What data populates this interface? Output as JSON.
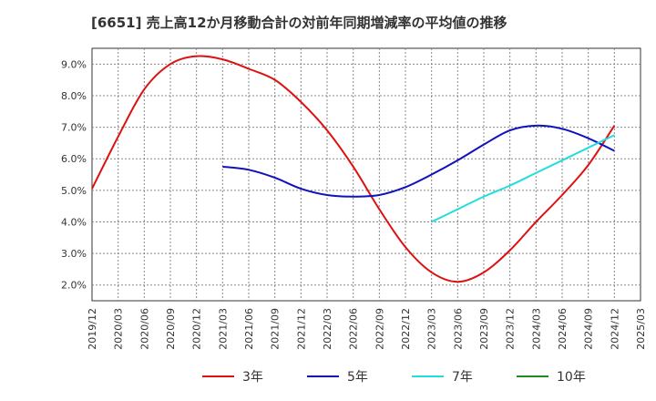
{
  "chart_data": {
    "type": "line",
    "title": "[6651]  売上高12か月移動合計の対前年同期増減率の平均値の推移",
    "xlabel": "",
    "ylabel": "",
    "x_ticks": [
      "2019/12",
      "2020/03",
      "2020/06",
      "2020/09",
      "2020/12",
      "2021/03",
      "2021/06",
      "2021/09",
      "2021/12",
      "2022/03",
      "2022/06",
      "2022/09",
      "2022/12",
      "2023/03",
      "2023/06",
      "2023/09",
      "2023/12",
      "2024/03",
      "2024/06",
      "2024/09",
      "2024/12",
      "2025/03"
    ],
    "y_ticks": [
      2.0,
      3.0,
      4.0,
      5.0,
      6.0,
      7.0,
      8.0,
      9.0
    ],
    "y_tick_labels": [
      "2.0%",
      "3.0%",
      "4.0%",
      "5.0%",
      "6.0%",
      "7.0%",
      "8.0%",
      "9.0%"
    ],
    "ylim": [
      1.5,
      9.5
    ],
    "grid": true,
    "legend_position": "bottom",
    "series": [
      {
        "name": "3年",
        "color": "#dd1111",
        "x": [
          "2019/12",
          "2020/03",
          "2020/06",
          "2020/09",
          "2020/12",
          "2021/03",
          "2021/06",
          "2021/09",
          "2021/12",
          "2022/03",
          "2022/06",
          "2022/09",
          "2022/12",
          "2023/03",
          "2023/06",
          "2023/09",
          "2023/12",
          "2024/03",
          "2024/06",
          "2024/09",
          "2024/12"
        ],
        "values": [
          5.05,
          6.7,
          8.2,
          9.0,
          9.25,
          9.15,
          8.85,
          8.5,
          7.8,
          6.9,
          5.75,
          4.4,
          3.2,
          2.4,
          2.1,
          2.4,
          3.1,
          4.0,
          4.85,
          5.8,
          7.05
        ]
      },
      {
        "name": "5年",
        "color": "#1111bb",
        "x": [
          "2021/03",
          "2021/06",
          "2021/09",
          "2021/12",
          "2022/03",
          "2022/06",
          "2022/09",
          "2022/12",
          "2023/03",
          "2023/06",
          "2023/09",
          "2023/12",
          "2024/03",
          "2024/06",
          "2024/09",
          "2024/12"
        ],
        "values": [
          5.75,
          5.65,
          5.4,
          5.05,
          4.85,
          4.8,
          4.85,
          5.1,
          5.5,
          5.95,
          6.45,
          6.9,
          7.05,
          6.95,
          6.65,
          6.25
        ]
      },
      {
        "name": "7年",
        "color": "#22dddd",
        "x": [
          "2023/03",
          "2023/06",
          "2023/09",
          "2023/12",
          "2024/03",
          "2024/06",
          "2024/09",
          "2024/12"
        ],
        "values": [
          4.0,
          4.4,
          4.8,
          5.15,
          5.55,
          5.95,
          6.35,
          6.75
        ]
      },
      {
        "name": "10年",
        "color": "#228822",
        "x": [],
        "values": []
      }
    ]
  }
}
